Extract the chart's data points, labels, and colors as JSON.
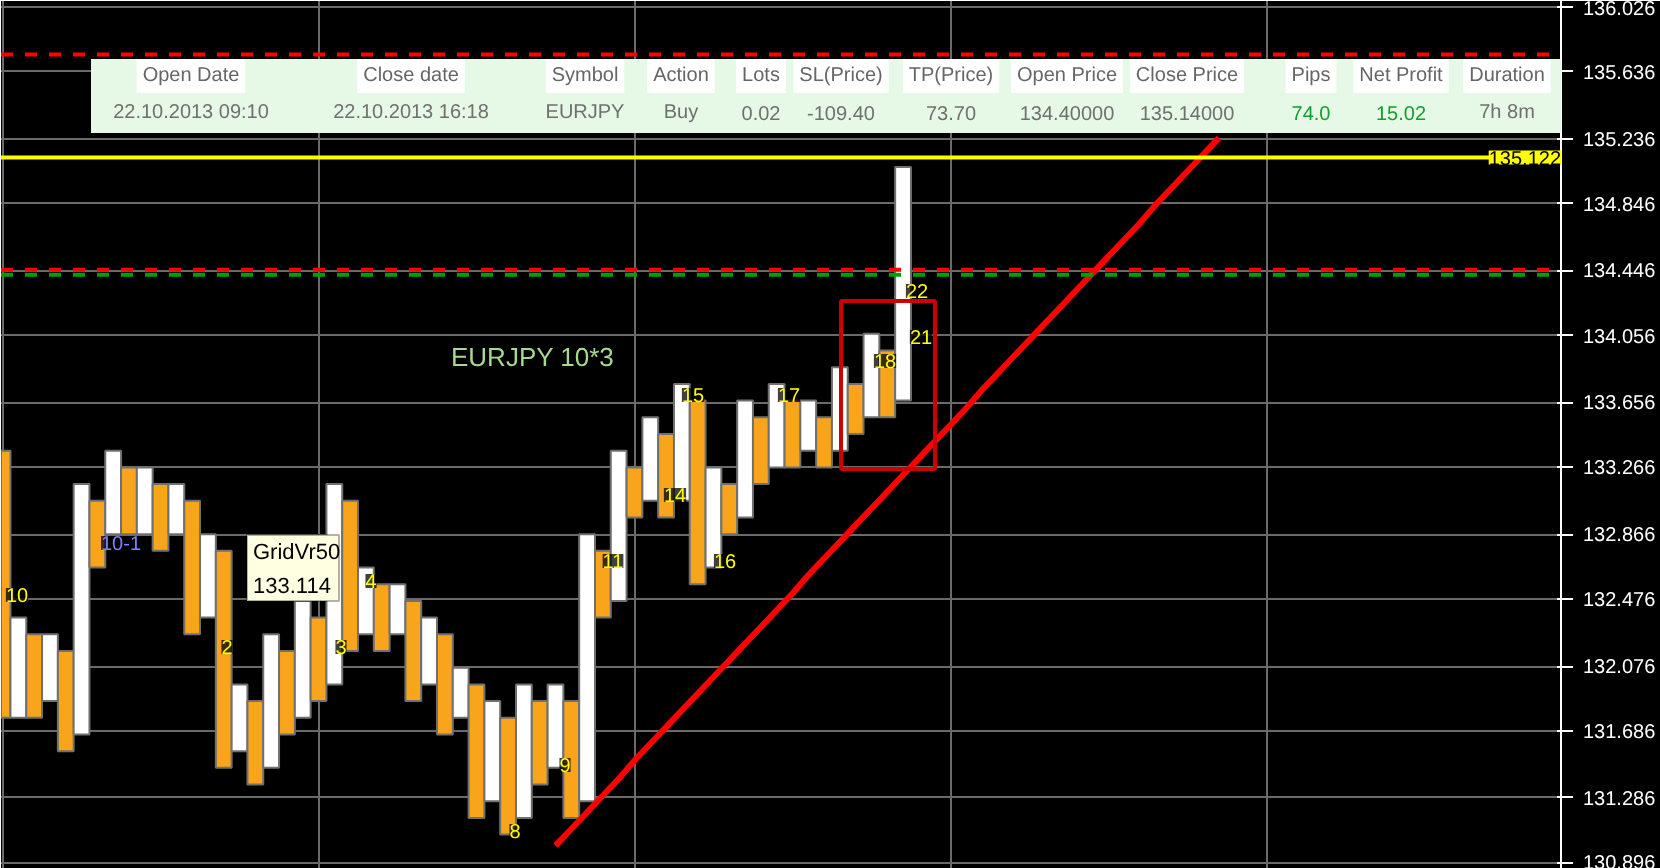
{
  "chart_data": {
    "type": "bar",
    "title": "EURJPY 10*3",
    "categories": [
      null,
      null,
      null,
      null,
      null,
      null,
      null,
      null,
      null,
      null,
      null,
      null,
      null,
      null,
      null,
      null,
      null,
      null,
      null,
      null,
      null,
      null,
      null,
      null,
      null,
      null,
      null,
      null,
      null,
      null,
      null,
      null,
      null,
      null,
      null,
      null,
      null,
      null,
      null,
      null,
      null,
      null,
      null,
      null,
      null,
      null,
      null,
      null,
      null,
      null,
      null,
      null,
      null,
      null,
      null,
      null,
      null,
      null,
      null,
      null,
      null,
      null,
      null,
      null,
      null,
      null,
      null,
      null,
      null,
      null,
      null,
      null,
      null,
      null,
      null,
      null,
      null,
      null,
      null,
      null,
      null,
      null,
      null,
      null,
      null,
      null,
      null,
      null,
      null,
      null,
      null,
      null,
      null,
      null,
      null,
      null,
      null,
      null,
      null
    ],
    "series": [
      {
        "base": [
          131.766,
          131.766,
          131.766,
          131.866,
          131.566,
          131.666,
          132.666,
          132.866,
          132.866,
          132.866,
          132.766,
          132.866,
          132.266,
          132.366,
          131.466,
          131.566,
          131.366,
          131.466,
          131.666,
          131.766,
          131.866,
          131.966,
          132.166,
          132.266,
          132.166,
          132.266,
          131.866,
          131.966,
          131.666,
          131.766,
          131.166,
          131.266,
          131.066,
          131.166,
          131.366,
          131.466,
          131.166,
          131.266,
          132.366,
          132.466,
          132.966,
          133.066,
          132.966,
          133.066,
          132.566,
          132.666,
          132.866,
          132.966,
          133.166,
          133.266,
          133.266,
          133.366,
          133.266,
          133.366,
          133.466,
          133.566,
          133.566,
          133.666,
          null,
          null,
          null,
          null,
          null,
          null,
          null,
          null,
          null,
          null,
          null,
          null,
          null,
          null,
          null,
          null,
          null,
          null,
          null,
          null,
          null,
          null,
          null,
          null,
          null,
          null,
          null,
          null,
          null,
          null,
          null,
          null,
          null,
          null,
          null,
          null,
          null,
          null,
          null,
          null,
          null
        ],
        "values": [
          1.6,
          0.6,
          0.5,
          0.4,
          0.6,
          1.5,
          0.4,
          0.5,
          0.4,
          0.4,
          0.4,
          0.3,
          0.8,
          0.5,
          1.3,
          0.4,
          0.5,
          0.8,
          0.5,
          0.7,
          0.5,
          1.2,
          0.9,
          0.4,
          0.4,
          0.3,
          0.6,
          0.4,
          0.6,
          0.3,
          0.8,
          0.6,
          0.7,
          0.8,
          0.5,
          0.5,
          0.7,
          1.6,
          0.4,
          0.9,
          0.3,
          0.5,
          0.5,
          0.7,
          1.1,
          0.6,
          0.3,
          0.7,
          0.4,
          0.5,
          0.4,
          0.3,
          0.3,
          0.5,
          0.3,
          0.5,
          0.4,
          1.4,
          null,
          null,
          null,
          null,
          null,
          null,
          null,
          null,
          null,
          null,
          null,
          null,
          null,
          null,
          null,
          null,
          null,
          null,
          null,
          null,
          null,
          null,
          null,
          null,
          null,
          null,
          null,
          null,
          null,
          null,
          null,
          null,
          null,
          null,
          null,
          null,
          null,
          null,
          null,
          null,
          null
        ],
        "colors": [
          "#f8a51c",
          "#ffffff",
          "#f8a51c",
          "#ffffff",
          "#f8a51c",
          "#ffffff",
          "#f8a51c",
          "#ffffff",
          "#f8a51c",
          "#ffffff",
          "#f8a51c",
          "#ffffff",
          "#f8a51c",
          "#ffffff",
          "#f8a51c",
          "#ffffff",
          "#f8a51c",
          "#ffffff",
          "#f8a51c",
          "#ffffff",
          "#f8a51c",
          "#ffffff",
          "#f8a51c",
          "#ffffff",
          "#f8a51c",
          "#ffffff",
          "#f8a51c",
          "#ffffff",
          "#f8a51c",
          "#ffffff",
          "#f8a51c",
          "#ffffff",
          "#f8a51c",
          "#ffffff",
          "#f8a51c",
          "#ffffff",
          "#f8a51c",
          "#ffffff",
          "#f8a51c",
          "#ffffff",
          "#f8a51c",
          "#ffffff",
          "#f8a51c",
          "#ffffff",
          "#f8a51c",
          "#ffffff",
          "#f8a51c",
          "#ffffff",
          "#f8a51c",
          "#ffffff",
          "#f8a51c",
          "#ffffff",
          "#f8a51c",
          "#ffffff",
          "#f8a51c",
          "#ffffff",
          "#f8a51c",
          "#ffffff",
          null,
          null,
          null,
          null,
          null,
          null,
          null,
          null,
          null,
          null,
          null,
          null,
          null,
          null,
          null,
          null,
          null,
          null,
          null,
          null,
          null,
          null,
          null,
          null,
          null,
          null,
          null,
          null,
          null,
          null,
          null,
          null,
          null,
          null,
          null,
          null,
          null,
          null,
          null,
          null,
          null
        ]
      },
      {
        "type": "line",
        "color": "#ff0000",
        "values": [
          null,
          null,
          null,
          null,
          null,
          null,
          null,
          null,
          null,
          null,
          null,
          null,
          null,
          null,
          null,
          null,
          null,
          null,
          null,
          null,
          null,
          null,
          null,
          null,
          null,
          null,
          null,
          null,
          null,
          null,
          null,
          null,
          null,
          null,
          null,
          131.0,
          131.1,
          131.2,
          131.3,
          131.4,
          131.51,
          131.61,
          131.71,
          131.81,
          131.91,
          132.01,
          132.11,
          132.21,
          132.31,
          132.41,
          132.51,
          132.62,
          132.72,
          132.82,
          132.92,
          133.02,
          133.12,
          133.22,
          133.32,
          133.42,
          133.52,
          133.62,
          133.73,
          133.83,
          133.93,
          134.03,
          134.13,
          134.23,
          134.33,
          134.43,
          134.53,
          134.63,
          134.73,
          134.84,
          134.94,
          135.04,
          135.14,
          135.24,
          null,
          null,
          null,
          null,
          null,
          null,
          null,
          null,
          null,
          null,
          null,
          null,
          null,
          null,
          null,
          null,
          null,
          null,
          null,
          null,
          null
        ]
      }
    ],
    "ylim": [
      130.86,
      136.06
    ],
    "yticks": [
      136.026,
      135.636,
      135.236,
      134.846,
      134.446,
      134.056,
      133.656,
      133.266,
      132.866,
      132.476,
      132.076,
      131.686,
      131.286,
      130.896
    ],
    "tick_labels": "y",
    "grid": true,
    "ref_lines": [
      {
        "axis": "y",
        "value": 135.122,
        "label": "135.122",
        "color": "#ffff00",
        "line_style": "solid"
      },
      {
        "axis": "y",
        "value": 134.45,
        "label": null,
        "color": "#ff0000",
        "line_style": "dashed"
      },
      {
        "axis": "y",
        "value": 134.42,
        "label": null,
        "color": "#00a000",
        "line_style": "dashed"
      },
      {
        "axis": "y",
        "value": 135.74,
        "label": null,
        "color": "#ff0000",
        "line_style": "dashed"
      }
    ],
    "annotations": [
      "GridVr50",
      "133.114",
      "Open Date",
      "Close date",
      "Symbol",
      "Action",
      "Lots",
      "SL(Price)",
      "TP(Price)",
      "Open Price",
      "Close Price",
      "Pips",
      "Net Profit",
      "Duration",
      "22.10.2013 09:10",
      "22.10.2013 16:18",
      "EURJPY",
      "Buy",
      "0.02",
      "-109.40",
      "73.70",
      "134.40000",
      "135.14000",
      "74.0",
      "15.02",
      "7h 8m",
      "10",
      "10-1",
      "2",
      "3",
      "4",
      "8",
      "9",
      "11",
      "14",
      "15",
      "16",
      "17",
      "18",
      "21",
      "22"
    ]
  }
}
